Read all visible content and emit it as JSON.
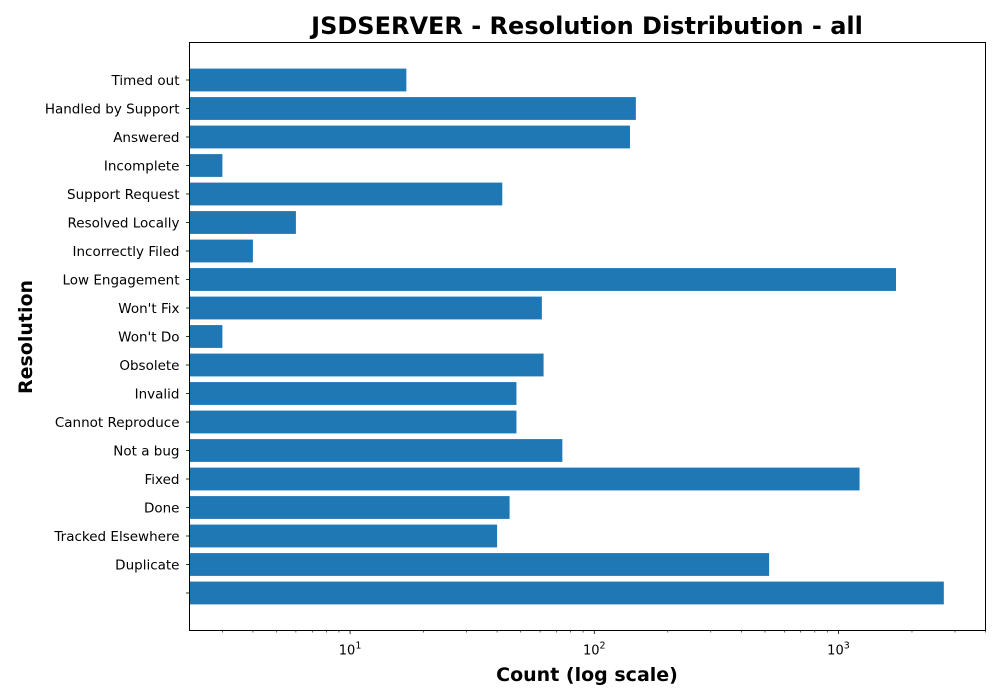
{
  "chart_data": {
    "type": "bar",
    "orientation": "horizontal",
    "title": "JSDSERVER - Resolution Distribution - all",
    "xlabel": "Count (log scale)",
    "ylabel": "Resolution",
    "xscale": "log",
    "xlim": [
      2.2,
      4000
    ],
    "x_ticks": [
      {
        "value": 10,
        "base": "10",
        "exp": "1"
      },
      {
        "value": 100,
        "base": "10",
        "exp": "2"
      },
      {
        "value": 1000,
        "base": "10",
        "exp": "3"
      }
    ],
    "categories": [
      "",
      "Duplicate",
      "Tracked Elsewhere",
      "Done",
      "Fixed",
      "Not a bug",
      "Cannot Reproduce",
      "Invalid",
      "Obsolete",
      "Won't Do",
      "Won't Fix",
      "Low Engagement",
      "Incorrectly Filed",
      "Resolved Locally",
      "Support Request",
      "Incomplete",
      "Answered",
      "Handled by Support",
      "Timed out"
    ],
    "values": [
      2700,
      520,
      40,
      45,
      1220,
      74,
      48,
      48,
      62,
      3,
      61,
      1720,
      4,
      6,
      42,
      3,
      140,
      148,
      17
    ],
    "bar_color": "#1f77b4",
    "grid": false
  }
}
